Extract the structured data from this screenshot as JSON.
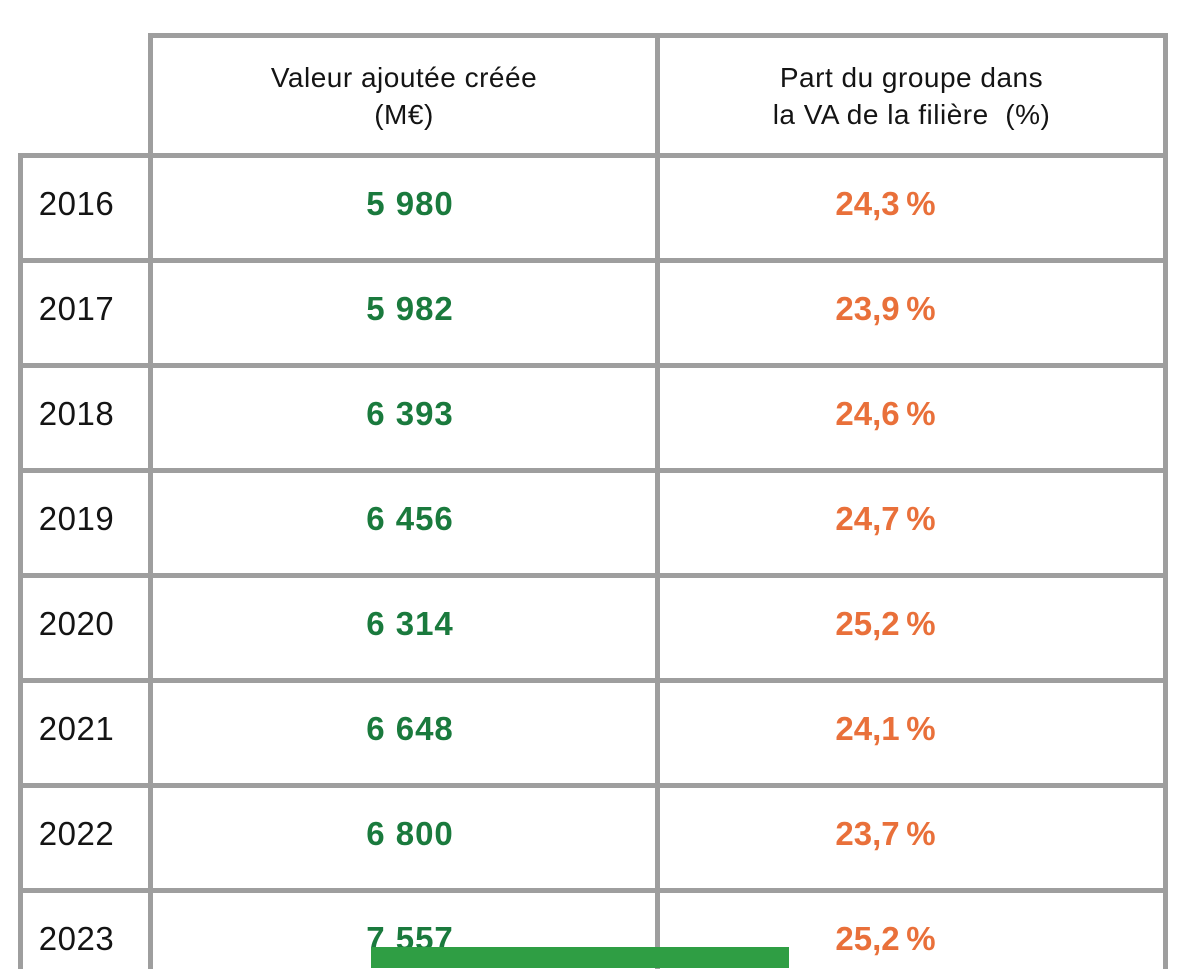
{
  "colors": {
    "border": "#9e9e9e",
    "text": "#141414",
    "value_green": "#1a7a3d",
    "percent_orange": "#e9703a",
    "footer_bar_green": "#2f9e44"
  },
  "table": {
    "header": {
      "va_lines": [
        "Valeur ajoutée créée",
        "(M€)"
      ],
      "part_lines": [
        "Part du groupe dans",
        "la VA de la filière  (%)"
      ]
    },
    "rows": [
      {
        "year": "2016",
        "va": "5 980",
        "part": "24,3 %"
      },
      {
        "year": "2017",
        "va": "5 982",
        "part": "23,9 %"
      },
      {
        "year": "2018",
        "va": "6 393",
        "part": "24,6 %"
      },
      {
        "year": "2019",
        "va": "6 456",
        "part": "24,7 %"
      },
      {
        "year": "2020",
        "va": "6 314",
        "part": "25,2 %"
      },
      {
        "year": "2021",
        "va": "6 648",
        "part": "24,1 %"
      },
      {
        "year": "2022",
        "va": "6 800",
        "part": "23,7 %"
      },
      {
        "year": "2023",
        "va": "7 557",
        "part": "25,2 %"
      }
    ]
  },
  "chart_data": {
    "type": "table",
    "title": "",
    "categories": [
      "2016",
      "2017",
      "2018",
      "2019",
      "2020",
      "2021",
      "2022",
      "2023"
    ],
    "series": [
      {
        "name": "Valeur ajoutée créée (M€)",
        "values": [
          5980,
          5982,
          6393,
          6456,
          6314,
          6648,
          6800,
          7557
        ]
      },
      {
        "name": "Part du groupe dans la VA de la filière (%)",
        "values": [
          24.3,
          23.9,
          24.6,
          24.7,
          25.2,
          24.1,
          23.7,
          25.2
        ]
      }
    ],
    "layout": {
      "grid": "full-borders",
      "first_column": "years",
      "legend": "none"
    }
  }
}
